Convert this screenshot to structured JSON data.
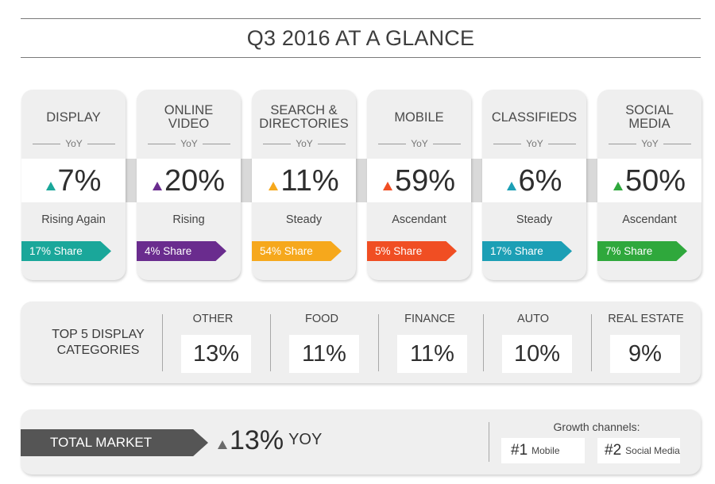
{
  "title": "Q3 2016 AT A GLANCE",
  "yoy_label": "YoY",
  "categories": [
    {
      "name": "DISPLAY",
      "pct": "7%",
      "trend": "Rising Again",
      "share": "17% Share",
      "color": "#1aa79a"
    },
    {
      "name": "ONLINE VIDEO",
      "pct": "20%",
      "trend": "Rising",
      "share": "4% Share",
      "color": "#6a2c8e"
    },
    {
      "name": "SEARCH & DIRECTORIES",
      "pct": "11%",
      "trend": "Steady",
      "share": "54% Share",
      "color": "#f6a81c"
    },
    {
      "name": "MOBILE",
      "pct": "59%",
      "trend": "Ascendant",
      "share": "5% Share",
      "color": "#f04e23"
    },
    {
      "name": "CLASSIFIEDS",
      "pct": "6%",
      "trend": "Steady",
      "share": "17% Share",
      "color": "#1c9fb5"
    },
    {
      "name": "SOCIAL MEDIA",
      "pct": "50%",
      "trend": "Ascendant",
      "share": "7% Share",
      "color": "#2fa83c"
    }
  ],
  "top5": {
    "label": "TOP 5 DISPLAY CATEGORIES",
    "items": [
      {
        "name": "OTHER",
        "pct": "13%"
      },
      {
        "name": "FOOD",
        "pct": "11%"
      },
      {
        "name": "FINANCE",
        "pct": "11%"
      },
      {
        "name": "AUTO",
        "pct": "10%"
      },
      {
        "name": "REAL ESTATE",
        "pct": "9%"
      }
    ]
  },
  "total_market": {
    "label": "TOTAL MARKET",
    "pct": "13%",
    "suffix": "YOY",
    "growth_label": "Growth channels:",
    "channels": [
      {
        "rank": "#1",
        "name": "Mobile"
      },
      {
        "rank": "#2",
        "name": "Social Media"
      }
    ]
  }
}
